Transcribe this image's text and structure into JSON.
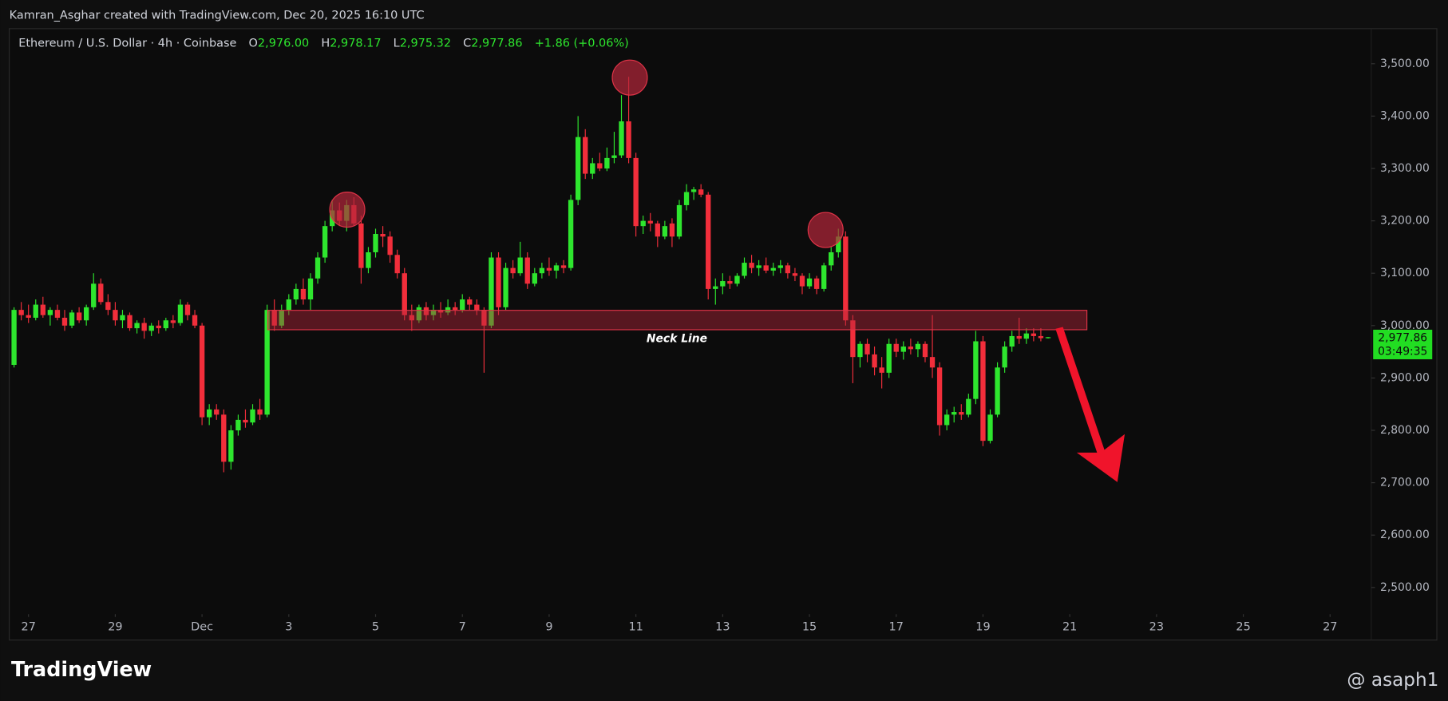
{
  "header": "Kamran_Asghar created with TradingView.com, Dec 20, 2025 16:10 UTC",
  "footer": {
    "brand": "TradingView",
    "handle": "@ asaph1"
  },
  "chart_data": {
    "type": "candlestick",
    "symbol": "Ethereum / U.S. Dollar · 4h · Coinbase",
    "ohlc_legend": [
      {
        "key": "O",
        "text": "2,976.00"
      },
      {
        "key": "H",
        "text": "2,978.17"
      },
      {
        "key": "L",
        "text": "2,975.32"
      },
      {
        "key": "C",
        "text": "2,977.86"
      }
    ],
    "change": "+1.86 (+0.06%)",
    "annotation": "Neck Line",
    "last_price_label": "2,977.86",
    "countdown": "03:49:35",
    "up_color": "#2ee62e",
    "down_color": "#f22e3b",
    "xlim": [
      -0.4,
      187.7
    ],
    "xticks": [
      {
        "value": 2,
        "label": "27"
      },
      {
        "value": 14,
        "label": "29"
      },
      {
        "value": 26,
        "label": "Dec"
      },
      {
        "value": 38,
        "label": "3"
      },
      {
        "value": 50,
        "label": "5"
      },
      {
        "value": 62,
        "label": "7"
      },
      {
        "value": 74,
        "label": "9"
      },
      {
        "value": 86,
        "label": "11"
      },
      {
        "value": 98,
        "label": "13"
      },
      {
        "value": 110,
        "label": "15"
      },
      {
        "value": 122,
        "label": "17"
      },
      {
        "value": 134,
        "label": "19"
      },
      {
        "value": 146,
        "label": "21"
      },
      {
        "value": 158,
        "label": "23"
      },
      {
        "value": 170,
        "label": "25"
      },
      {
        "value": 182,
        "label": "27"
      }
    ],
    "ylim": [
      2449,
      3567
    ],
    "yticks": [
      {
        "value": 2500,
        "label": "2,500.00"
      },
      {
        "value": 2600,
        "label": "2,600.00"
      },
      {
        "value": 2700,
        "label": "2,700.00"
      },
      {
        "value": 2800,
        "label": "2,800.00"
      },
      {
        "value": 2900,
        "label": "2,900.00"
      },
      {
        "value": 3000,
        "label": "3,000.00"
      },
      {
        "value": 3100,
        "label": "3,100.00"
      },
      {
        "value": 3200,
        "label": "3,200.00"
      },
      {
        "value": 3300,
        "label": "3,300.00"
      },
      {
        "value": 3400,
        "label": "3,400.00"
      },
      {
        "value": 3500,
        "label": "3,500.00"
      }
    ],
    "candles": [
      [
        2925,
        3035,
        2920,
        3030
      ],
      [
        3030,
        3045,
        3010,
        3020
      ],
      [
        3020,
        3040,
        3005,
        3015
      ],
      [
        3015,
        3050,
        3010,
        3040
      ],
      [
        3040,
        3055,
        3015,
        3020
      ],
      [
        3020,
        3035,
        3000,
        3030
      ],
      [
        3030,
        3040,
        3010,
        3015
      ],
      [
        3015,
        3030,
        2990,
        3000
      ],
      [
        3000,
        3030,
        2995,
        3025
      ],
      [
        3025,
        3035,
        3005,
        3010
      ],
      [
        3010,
        3040,
        3000,
        3035
      ],
      [
        3035,
        3100,
        3030,
        3080
      ],
      [
        3080,
        3090,
        3040,
        3045
      ],
      [
        3045,
        3060,
        3020,
        3030
      ],
      [
        3030,
        3045,
        3000,
        3010
      ],
      [
        3010,
        3030,
        2995,
        3020
      ],
      [
        3020,
        3025,
        2990,
        2995
      ],
      [
        2995,
        3010,
        2985,
        3005
      ],
      [
        3005,
        3015,
        2975,
        2990
      ],
      [
        2990,
        3005,
        2980,
        3000
      ],
      [
        3000,
        3010,
        2985,
        2995
      ],
      [
        2995,
        3015,
        2990,
        3010
      ],
      [
        3010,
        3020,
        2995,
        3005
      ],
      [
        3005,
        3050,
        3000,
        3040
      ],
      [
        3040,
        3045,
        3010,
        3020
      ],
      [
        3020,
        3030,
        2995,
        3000
      ],
      [
        3000,
        3005,
        2810,
        2825
      ],
      [
        2825,
        2850,
        2810,
        2840
      ],
      [
        2840,
        2850,
        2820,
        2830
      ],
      [
        2830,
        2840,
        2720,
        2740
      ],
      [
        2740,
        2810,
        2725,
        2800
      ],
      [
        2800,
        2830,
        2790,
        2820
      ],
      [
        2820,
        2840,
        2805,
        2815
      ],
      [
        2815,
        2850,
        2810,
        2840
      ],
      [
        2840,
        2860,
        2820,
        2830
      ],
      [
        2830,
        3040,
        2825,
        3030
      ],
      [
        3030,
        3050,
        2990,
        3000
      ],
      [
        3000,
        3040,
        2995,
        3030
      ],
      [
        3030,
        3060,
        3020,
        3050
      ],
      [
        3050,
        3080,
        3040,
        3070
      ],
      [
        3070,
        3090,
        3040,
        3050
      ],
      [
        3050,
        3100,
        3030,
        3090
      ],
      [
        3090,
        3140,
        3080,
        3130
      ],
      [
        3130,
        3200,
        3120,
        3190
      ],
      [
        3190,
        3240,
        3180,
        3220
      ],
      [
        3220,
        3235,
        3190,
        3200
      ],
      [
        3200,
        3240,
        3180,
        3230
      ],
      [
        3230,
        3245,
        3190,
        3195
      ],
      [
        3195,
        3210,
        3080,
        3110
      ],
      [
        3110,
        3150,
        3100,
        3140
      ],
      [
        3140,
        3185,
        3130,
        3175
      ],
      [
        3175,
        3190,
        3150,
        3170
      ],
      [
        3170,
        3180,
        3120,
        3135
      ],
      [
        3135,
        3145,
        3090,
        3100
      ],
      [
        3100,
        3110,
        3010,
        3020
      ],
      [
        3020,
        3040,
        2990,
        3010
      ],
      [
        3010,
        3040,
        3005,
        3035
      ],
      [
        3035,
        3045,
        3010,
        3020
      ],
      [
        3020,
        3040,
        3010,
        3030
      ],
      [
        3030,
        3045,
        3015,
        3025
      ],
      [
        3025,
        3050,
        3020,
        3035
      ],
      [
        3035,
        3045,
        3020,
        3030
      ],
      [
        3030,
        3060,
        3025,
        3050
      ],
      [
        3050,
        3055,
        3030,
        3040
      ],
      [
        3040,
        3050,
        3020,
        3030
      ],
      [
        3030,
        3035,
        2910,
        3000
      ],
      [
        3000,
        3140,
        2995,
        3130
      ],
      [
        3130,
        3140,
        3020,
        3035
      ],
      [
        3035,
        3120,
        3030,
        3110
      ],
      [
        3110,
        3125,
        3090,
        3100
      ],
      [
        3100,
        3160,
        3095,
        3130
      ],
      [
        3130,
        3140,
        3070,
        3080
      ],
      [
        3080,
        3110,
        3075,
        3100
      ],
      [
        3100,
        3120,
        3090,
        3110
      ],
      [
        3110,
        3130,
        3095,
        3105
      ],
      [
        3105,
        3120,
        3090,
        3115
      ],
      [
        3115,
        3125,
        3100,
        3110
      ],
      [
        3110,
        3250,
        3105,
        3240
      ],
      [
        3240,
        3400,
        3230,
        3360
      ],
      [
        3360,
        3375,
        3280,
        3290
      ],
      [
        3290,
        3320,
        3280,
        3310
      ],
      [
        3310,
        3330,
        3295,
        3300
      ],
      [
        3300,
        3340,
        3295,
        3320
      ],
      [
        3320,
        3370,
        3310,
        3325
      ],
      [
        3325,
        3440,
        3320,
        3390
      ],
      [
        3390,
        3475,
        3310,
        3320
      ],
      [
        3320,
        3330,
        3170,
        3190
      ],
      [
        3190,
        3210,
        3175,
        3200
      ],
      [
        3200,
        3215,
        3180,
        3195
      ],
      [
        3195,
        3200,
        3150,
        3170
      ],
      [
        3170,
        3200,
        3165,
        3190
      ],
      [
        3195,
        3205,
        3150,
        3170
      ],
      [
        3170,
        3240,
        3165,
        3230
      ],
      [
        3230,
        3270,
        3220,
        3255
      ],
      [
        3255,
        3265,
        3240,
        3260
      ],
      [
        3260,
        3270,
        3245,
        3250
      ],
      [
        3250,
        3255,
        3050,
        3070
      ],
      [
        3070,
        3090,
        3040,
        3075
      ],
      [
        3075,
        3100,
        3060,
        3085
      ],
      [
        3085,
        3095,
        3070,
        3080
      ],
      [
        3080,
        3100,
        3075,
        3095
      ],
      [
        3095,
        3130,
        3090,
        3120
      ],
      [
        3120,
        3135,
        3100,
        3110
      ],
      [
        3110,
        3125,
        3095,
        3115
      ],
      [
        3115,
        3130,
        3100,
        3105
      ],
      [
        3105,
        3120,
        3095,
        3110
      ],
      [
        3110,
        3125,
        3100,
        3115
      ],
      [
        3115,
        3120,
        3090,
        3100
      ],
      [
        3100,
        3110,
        3085,
        3095
      ],
      [
        3095,
        3100,
        3060,
        3075
      ],
      [
        3075,
        3100,
        3070,
        3090
      ],
      [
        3090,
        3095,
        3060,
        3070
      ],
      [
        3070,
        3120,
        3065,
        3115
      ],
      [
        3115,
        3150,
        3105,
        3140
      ],
      [
        3140,
        3185,
        3130,
        3170
      ],
      [
        3170,
        3180,
        3000,
        3010
      ],
      [
        3010,
        3020,
        2890,
        2940
      ],
      [
        2940,
        2970,
        2920,
        2965
      ],
      [
        2965,
        2975,
        2930,
        2945
      ],
      [
        2945,
        2960,
        2905,
        2920
      ],
      [
        2920,
        2940,
        2880,
        2910
      ],
      [
        2910,
        2975,
        2900,
        2965
      ],
      [
        2965,
        2975,
        2940,
        2950
      ],
      [
        2950,
        2970,
        2935,
        2960
      ],
      [
        2960,
        2975,
        2945,
        2955
      ],
      [
        2955,
        2970,
        2940,
        2965
      ],
      [
        2965,
        2970,
        2930,
        2940
      ],
      [
        2940,
        3020,
        2900,
        2920
      ],
      [
        2920,
        2930,
        2790,
        2810
      ],
      [
        2810,
        2840,
        2800,
        2830
      ],
      [
        2830,
        2845,
        2815,
        2835
      ],
      [
        2835,
        2850,
        2820,
        2830
      ],
      [
        2830,
        2870,
        2825,
        2860
      ],
      [
        2860,
        2990,
        2850,
        2970
      ],
      [
        2970,
        2980,
        2770,
        2780
      ],
      [
        2780,
        2840,
        2775,
        2830
      ],
      [
        2830,
        2930,
        2825,
        2920
      ],
      [
        2920,
        2970,
        2910,
        2960
      ],
      [
        2960,
        2990,
        2950,
        2980
      ],
      [
        2980,
        3015,
        2965,
        2975
      ],
      [
        2975,
        2995,
        2965,
        2985
      ],
      [
        2985,
        2995,
        2970,
        2980
      ],
      [
        2980,
        2995,
        2970,
        2976
      ],
      [
        2976,
        2978.17,
        2975.32,
        2977.86
      ]
    ]
  }
}
